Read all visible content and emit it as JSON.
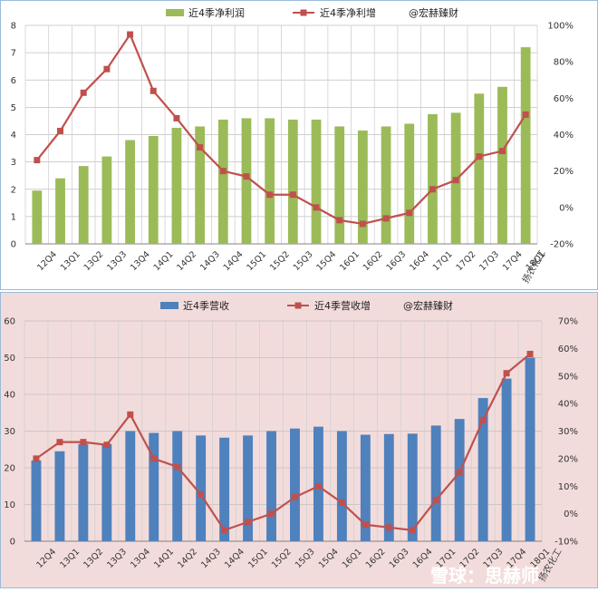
{
  "credit": "扬农化工",
  "watermark": "雪球：思赫师",
  "categories": [
    "12Q4",
    "13Q1",
    "13Q2",
    "13Q3",
    "13Q4",
    "14Q1",
    "14Q2",
    "14Q3",
    "14Q4",
    "15Q1",
    "15Q2",
    "15Q3",
    "15Q4",
    "16Q1",
    "16Q2",
    "16Q3",
    "16Q4",
    "17Q1",
    "17Q2",
    "17Q3",
    "17Q4",
    "18Q1"
  ],
  "chart_data": [
    {
      "type": "bar",
      "title": "",
      "legend_extra": "@宏赫臻财",
      "categories": [
        "12Q4",
        "13Q1",
        "13Q2",
        "13Q3",
        "13Q4",
        "14Q1",
        "14Q2",
        "14Q3",
        "14Q4",
        "15Q1",
        "15Q2",
        "15Q3",
        "15Q4",
        "16Q1",
        "16Q2",
        "16Q3",
        "16Q4",
        "17Q1",
        "17Q2",
        "17Q3",
        "17Q4",
        "18Q1"
      ],
      "series": [
        {
          "name": "近4季净利润",
          "type": "bar",
          "axis": "left",
          "color": "#9bbb59",
          "values": [
            1.95,
            2.4,
            2.85,
            3.2,
            3.8,
            3.95,
            4.25,
            4.3,
            4.55,
            4.6,
            4.6,
            4.55,
            4.55,
            4.3,
            4.15,
            4.3,
            4.4,
            4.75,
            4.8,
            5.5,
            5.75,
            7.2
          ]
        },
        {
          "name": "近4季净利增",
          "type": "line",
          "axis": "right",
          "color": "#c0504d",
          "values": [
            26,
            42,
            63,
            76,
            95,
            64,
            49,
            33,
            20,
            17,
            7,
            7,
            0,
            -7,
            -9,
            -6,
            -3,
            10,
            15,
            28,
            31,
            51
          ]
        }
      ],
      "ylim_left": [
        0,
        8
      ],
      "yticks_left": [
        "0",
        "1",
        "2",
        "3",
        "4",
        "5",
        "6",
        "7",
        "8"
      ],
      "ylim_right": [
        -20,
        100
      ],
      "yticks_right": [
        "-20%",
        "0%",
        "20%",
        "40%",
        "60%",
        "80%",
        "100%"
      ],
      "grid": true,
      "legend_position": "top"
    },
    {
      "type": "bar",
      "title": "",
      "legend_extra": "@宏赫臻财",
      "categories": [
        "12Q4",
        "13Q1",
        "13Q2",
        "13Q3",
        "13Q4",
        "14Q1",
        "14Q2",
        "14Q3",
        "14Q4",
        "15Q1",
        "15Q2",
        "15Q3",
        "15Q4",
        "16Q1",
        "16Q2",
        "16Q3",
        "16Q4",
        "17Q1",
        "17Q2",
        "17Q3",
        "17Q4",
        "18Q1"
      ],
      "series": [
        {
          "name": "近4季营收",
          "type": "bar",
          "axis": "left",
          "color": "#4f81bd",
          "values": [
            22,
            24.5,
            26.5,
            26.5,
            30,
            29.5,
            30,
            28.8,
            28.2,
            28.8,
            30,
            30.7,
            31.2,
            30,
            29,
            29.2,
            29.3,
            31.5,
            33.3,
            39,
            44.3,
            50
          ]
        },
        {
          "name": "近4季营收增",
          "type": "line",
          "axis": "right",
          "color": "#c0504d",
          "values": [
            20,
            26,
            26,
            25,
            36,
            20,
            17,
            7,
            -6,
            -3,
            0,
            6,
            10,
            4,
            -4,
            -5,
            -6,
            5,
            15,
            34,
            51,
            58
          ]
        }
      ],
      "ylim_left": [
        0,
        60
      ],
      "yticks_left": [
        "0",
        "10",
        "20",
        "30",
        "40",
        "50",
        "60"
      ],
      "ylim_right": [
        -10,
        70
      ],
      "yticks_right": [
        "-10%",
        "0%",
        "10%",
        "20%",
        "30%",
        "40%",
        "50%",
        "60%",
        "70%"
      ],
      "grid": true,
      "legend_position": "top"
    }
  ]
}
